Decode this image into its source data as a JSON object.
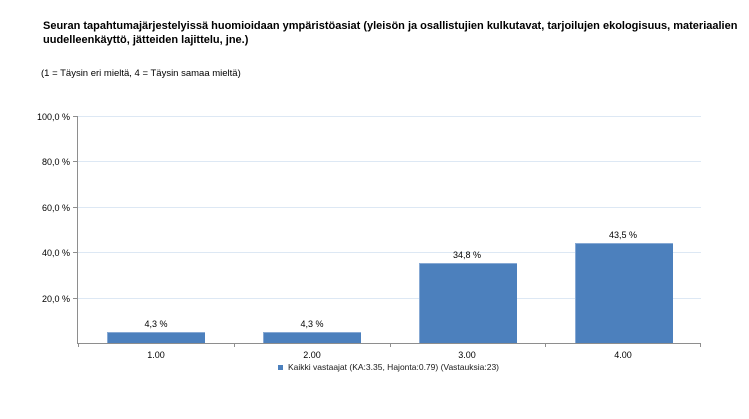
{
  "header": {
    "title": "Seuran tapahtumajärjestelyissä huomioidaan ympäristöasiat (yleisön ja osallistujien kulkutavat, tarjoilujen ekologisuus, materiaalien uudelleenkäyttö, jätteiden lajittelu, jne.)",
    "subtitle": "(1 = Täysin eri mieltä, 4 = Täysin samaa mieltä)"
  },
  "chart_data": {
    "type": "bar",
    "categories": [
      "1.00",
      "2.00",
      "3.00",
      "4.00"
    ],
    "values": [
      4.3,
      4.3,
      34.8,
      43.5
    ],
    "value_labels": [
      "4,3 %",
      "4,3 %",
      "34,8 %",
      "43,5 %"
    ],
    "ytick_step": 20,
    "ytick_labels": [
      "20,0 %",
      "40,0 %",
      "60,0 %",
      "80,0 %",
      "100,0 %"
    ],
    "ylim": [
      0,
      100
    ],
    "grid": true,
    "legend": {
      "position": "bottom",
      "entries": [
        {
          "label": "Kaikki vastaajat (KA:3.35, Hajonta:0.79) (Vastauksia:23)",
          "color": "#4c80bd"
        }
      ]
    },
    "colors": {
      "bar_fill": "#4c80bd",
      "bar_highlight": "#87a9d4",
      "gridline": "#dde8f4",
      "axis": "#8e8e8e",
      "text": "#000000"
    }
  }
}
